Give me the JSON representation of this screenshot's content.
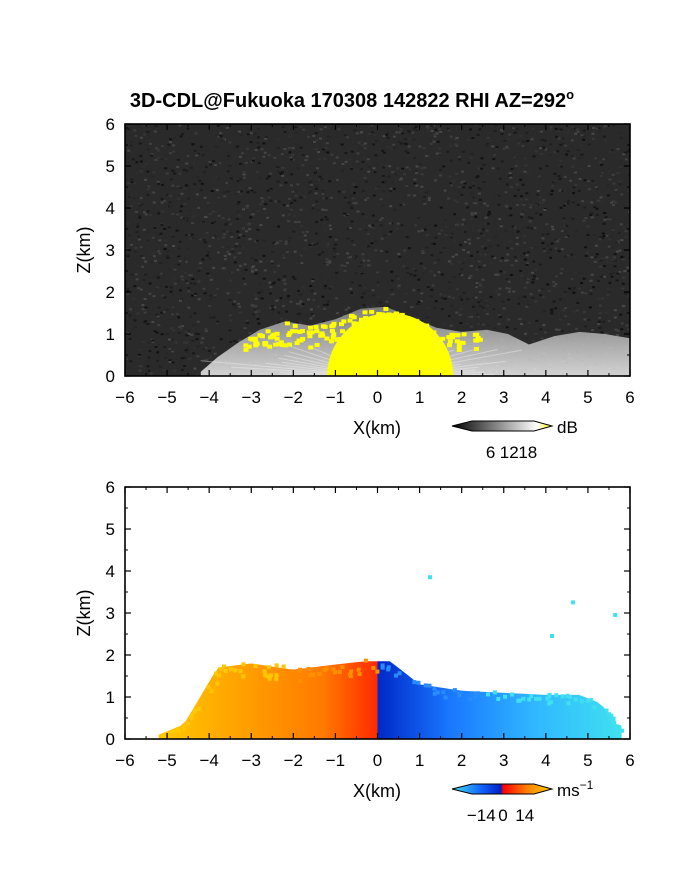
{
  "chart_data": [
    {
      "type": "heatmap",
      "title": "3D-CDL@Fukuoka 170308 142822 RHI AZ=292",
      "title_superscript": "o",
      "xlabel": "X(km)",
      "ylabel": "Z(km)",
      "xlim": [
        -6,
        6
      ],
      "ylim": [
        0,
        6
      ],
      "xticks": [
        -6,
        -5,
        -4,
        -3,
        -2,
        -1,
        0,
        1,
        2,
        3,
        4,
        5,
        6
      ],
      "yticks": [
        0,
        1,
        2,
        3,
        4,
        5,
        6
      ],
      "background": "#2a2a2a",
      "colorbar": {
        "unit": "dB",
        "ticks": [
          6,
          12,
          18
        ],
        "range": [
          0,
          20
        ],
        "colors": [
          "#000000",
          "#ffffff",
          "#ffff00"
        ]
      },
      "echo_top_profile_km": [
        {
          "x": -4.2,
          "z": 0.1
        },
        {
          "x": -3.8,
          "z": 0.45
        },
        {
          "x": -3.3,
          "z": 0.8
        },
        {
          "x": -2.8,
          "z": 1.1
        },
        {
          "x": -2.2,
          "z": 1.3
        },
        {
          "x": -1.6,
          "z": 1.2
        },
        {
          "x": -1.0,
          "z": 1.35
        },
        {
          "x": -0.4,
          "z": 1.6
        },
        {
          "x": 0.2,
          "z": 1.65
        },
        {
          "x": 0.8,
          "z": 1.4
        },
        {
          "x": 1.4,
          "z": 1.15
        },
        {
          "x": 2.0,
          "z": 1.05
        },
        {
          "x": 2.6,
          "z": 1.1
        },
        {
          "x": 3.1,
          "z": 1.0
        },
        {
          "x": 3.6,
          "z": 0.75
        },
        {
          "x": 4.2,
          "z": 0.95
        },
        {
          "x": 4.8,
          "z": 1.05
        },
        {
          "x": 5.4,
          "z": 1.0
        },
        {
          "x": 6.0,
          "z": 0.9
        }
      ],
      "strong_echo_region_km": {
        "x": [
          -1.2,
          1.8
        ],
        "z": [
          0,
          1.5
        ],
        "value_db": 18
      }
    },
    {
      "type": "heatmap",
      "title": "",
      "xlabel": "X(km)",
      "ylabel": "Z(km)",
      "xlim": [
        -6,
        6
      ],
      "ylim": [
        0,
        6
      ],
      "xticks": [
        -6,
        -5,
        -4,
        -3,
        -2,
        -1,
        0,
        1,
        2,
        3,
        4,
        5,
        6
      ],
      "yticks": [
        0,
        1,
        2,
        3,
        4,
        5,
        6
      ],
      "colorbar": {
        "unit": "ms",
        "unit_superscript": "−1",
        "ticks": [
          "−14",
          "0",
          "14"
        ],
        "tick_values": [
          -14,
          0,
          14
        ],
        "range": [
          -20,
          20
        ],
        "colors": [
          "#40e0f0",
          "#1060ff",
          "#0020c0",
          "#ff0000",
          "#ff7000",
          "#ffd000"
        ]
      },
      "echo_top_profile_km": [
        {
          "x": -5.2,
          "z": 0.1
        },
        {
          "x": -4.6,
          "z": 0.35
        },
        {
          "x": -3.8,
          "z": 1.7
        },
        {
          "x": -3.0,
          "z": 1.8
        },
        {
          "x": -2.0,
          "z": 1.65
        },
        {
          "x": -1.2,
          "z": 1.75
        },
        {
          "x": -0.3,
          "z": 1.85
        },
        {
          "x": 0.3,
          "z": 1.85
        },
        {
          "x": 1.0,
          "z": 1.3
        },
        {
          "x": 2.0,
          "z": 1.15
        },
        {
          "x": 3.0,
          "z": 1.1
        },
        {
          "x": 4.0,
          "z": 1.05
        },
        {
          "x": 4.8,
          "z": 1.05
        },
        {
          "x": 5.3,
          "z": 0.85
        },
        {
          "x": 5.8,
          "z": 0.2
        }
      ],
      "velocity_sign_boundary_x_km": 0.0,
      "scattered_points_km": [
        {
          "x": 1.2,
          "z": 3.9
        },
        {
          "x": 4.6,
          "z": 3.3
        },
        {
          "x": 5.6,
          "z": 3.0
        },
        {
          "x": 4.1,
          "z": 2.5
        }
      ]
    }
  ]
}
